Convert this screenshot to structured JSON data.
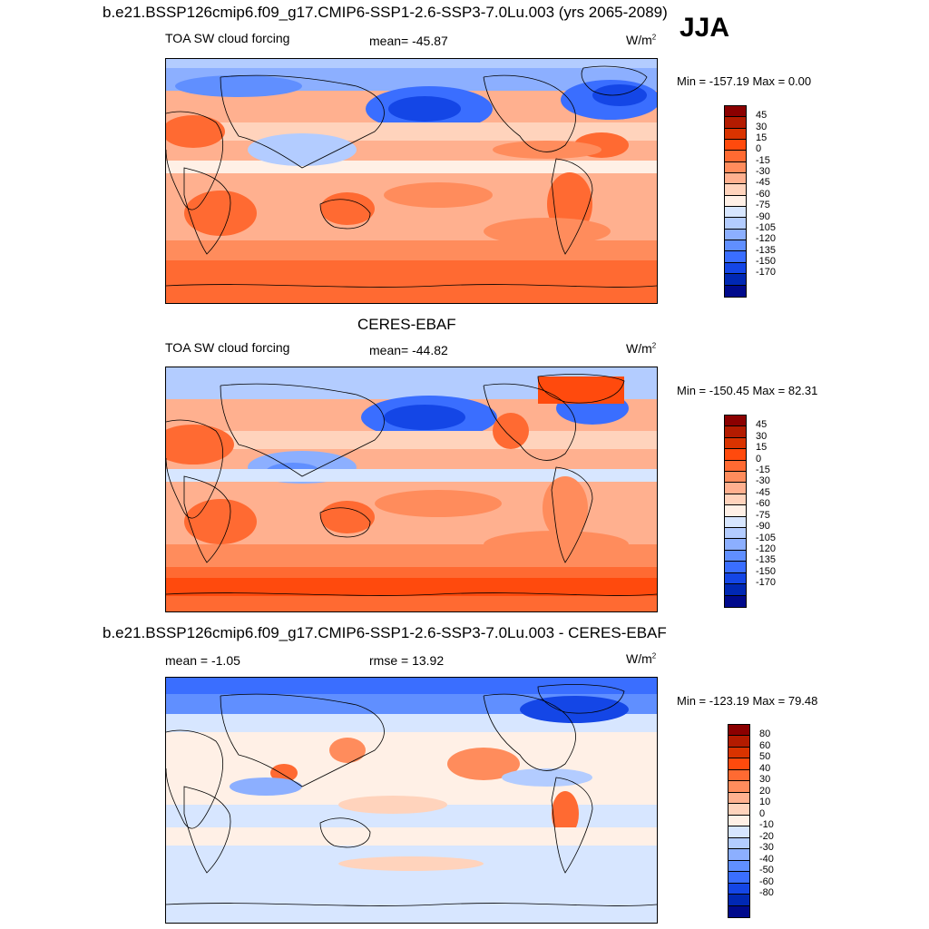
{
  "figure": {
    "title": "b.e21.BSSP126cmip6.f09_g17.CMIP6-SSP1-2.6-SSP3-7.0Lu.003 (yrs 2065-2089)",
    "season": "JJA"
  },
  "panels": [
    {
      "header": "",
      "left_label": "TOA SW cloud forcing",
      "center_label": "mean= -45.87",
      "units": "W/m",
      "units_sup": "2",
      "minmax": "Min = -157.19 Max =   0.00",
      "colorbar_labels": [
        "45",
        "30",
        "15",
        "0",
        "-15",
        "-30",
        "-45",
        "-60",
        "-75",
        "-90",
        "-105",
        "-120",
        "-135",
        "-150",
        "-170"
      ],
      "colors": [
        "#8b0000",
        "#b31b00",
        "#d93300",
        "#ff4a0d",
        "#ff6a32",
        "#ff8c5c",
        "#ffb08f",
        "#ffd3bc",
        "#fff0e6",
        "#d7e6ff",
        "#b3ccff",
        "#8cafff",
        "#608fff",
        "#3a6eff",
        "#1446e6",
        "#0028b4",
        "#000a8c"
      ]
    },
    {
      "header": "CERES-EBAF",
      "left_label": "TOA SW cloud forcing",
      "center_label": "mean= -44.82",
      "units": "W/m",
      "units_sup": "2",
      "minmax": "Min = -150.45 Max =  82.31",
      "colorbar_labels": [
        "45",
        "30",
        "15",
        "0",
        "-15",
        "-30",
        "-45",
        "-60",
        "-75",
        "-90",
        "-105",
        "-120",
        "-135",
        "-150",
        "-170"
      ],
      "colors": [
        "#8b0000",
        "#b31b00",
        "#d93300",
        "#ff4a0d",
        "#ff6a32",
        "#ff8c5c",
        "#ffb08f",
        "#ffd3bc",
        "#fff0e6",
        "#d7e6ff",
        "#b3ccff",
        "#8cafff",
        "#608fff",
        "#3a6eff",
        "#1446e6",
        "#0028b4",
        "#000a8c"
      ]
    },
    {
      "header": "b.e21.BSSP126cmip6.f09_g17.CMIP6-SSP1-2.6-SSP3-7.0Lu.003 - CERES-EBAF",
      "left_label": "mean =  -1.05",
      "center_label": "rmse =  13.92",
      "units": "W/m",
      "units_sup": "2",
      "minmax": "Min = -123.19 Max =  79.48",
      "colorbar_labels": [
        "80",
        "60",
        "50",
        "40",
        "30",
        "20",
        "10",
        "0",
        "-10",
        "-20",
        "-30",
        "-40",
        "-50",
        "-60",
        "-80"
      ],
      "colors": [
        "#8b0000",
        "#b31b00",
        "#d93300",
        "#ff4a0d",
        "#ff6a32",
        "#ff8c5c",
        "#ffb08f",
        "#ffd3bc",
        "#fff0e6",
        "#d7e6ff",
        "#b3ccff",
        "#8cafff",
        "#608fff",
        "#3a6eff",
        "#1446e6",
        "#0028b4",
        "#000a8c"
      ]
    }
  ]
}
